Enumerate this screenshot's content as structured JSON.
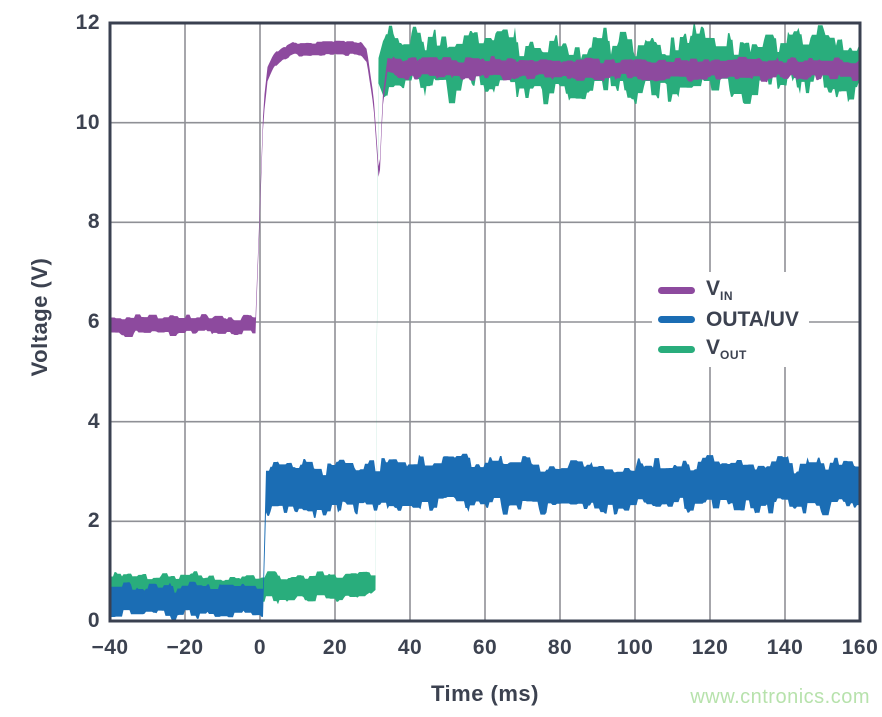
{
  "page": {
    "background": "#ffffff",
    "watermark_text": "www.cntronics.com"
  },
  "chart_data": {
    "type": "line",
    "title": "",
    "xlabel": "Time (ms)",
    "ylabel": "Voltage (V)",
    "xlim": [
      -40,
      160
    ],
    "ylim": [
      0,
      12
    ],
    "grid": true,
    "legend_position": "middle-right",
    "xticks": [
      {
        "value": -40,
        "label": "−40"
      },
      {
        "value": -20,
        "label": "−20"
      },
      {
        "value": 0,
        "label": "0"
      },
      {
        "value": 20,
        "label": "20"
      },
      {
        "value": 40,
        "label": "40"
      },
      {
        "value": 60,
        "label": "60"
      },
      {
        "value": 80,
        "label": "80"
      },
      {
        "value": 100,
        "label": "100"
      },
      {
        "value": 120,
        "label": "120"
      },
      {
        "value": 140,
        "label": "140"
      },
      {
        "value": 160,
        "label": "160"
      }
    ],
    "yticks": [
      {
        "value": 0,
        "label": "0"
      },
      {
        "value": 2,
        "label": "2"
      },
      {
        "value": 4,
        "label": "4"
      },
      {
        "value": 6,
        "label": "6"
      },
      {
        "value": 8,
        "label": "8"
      },
      {
        "value": 10,
        "label": "10"
      },
      {
        "value": 12,
        "label": "12"
      }
    ],
    "colors": {
      "axis_border": "#3a4050",
      "grid": "#8f9096",
      "tick_label": "#3c4250",
      "watermark": "#b7e2ac"
    },
    "point_format": "[t_ms, volts_center, band_halfwidth_v, noise_amplitude_v]",
    "legend_order": [
      "vin",
      "outa-uv",
      "vout"
    ],
    "series": [
      {
        "id": "vout",
        "legend": {
          "main": "V",
          "sub": "OUT"
        },
        "color": "#29ad7c",
        "points": [
          [
            -40,
            0.64,
            0.18,
            0.14
          ],
          [
            28,
            0.7,
            0.18,
            0.14
          ],
          [
            30.9,
            0.78,
            0.12,
            0.06
          ],
          [
            31.5,
            11.05,
            0.15,
            0.1
          ],
          [
            33,
            11.15,
            0.25,
            0.42
          ],
          [
            160,
            11.15,
            0.25,
            0.42
          ]
        ]
      },
      {
        "id": "outa-uv",
        "legend": {
          "main": "OUTA/UV",
          "sub": ""
        },
        "color": "#1b6db4",
        "points": [
          [
            -40,
            0.42,
            0.2,
            0.15
          ],
          [
            0.9,
            0.42,
            0.2,
            0.15
          ],
          [
            1.5,
            2.72,
            0.3,
            0.26
          ],
          [
            160,
            2.72,
            0.3,
            0.26
          ]
        ]
      },
      {
        "id": "vin",
        "legend": {
          "main": "V",
          "sub": "IN"
        },
        "color": "#8d4a9e",
        "points": [
          [
            -40,
            5.93,
            0.11,
            0.1
          ],
          [
            -1.2,
            5.93,
            0.11,
            0.1
          ],
          [
            0,
            8.3,
            0.12,
            0.05
          ],
          [
            0.9,
            10.2,
            0.12,
            0.05
          ],
          [
            2,
            10.95,
            0.12,
            0.05
          ],
          [
            3.5,
            11.2,
            0.11,
            0.05
          ],
          [
            6,
            11.38,
            0.1,
            0.06
          ],
          [
            9,
            11.5,
            0.1,
            0.06
          ],
          [
            27,
            11.5,
            0.1,
            0.06
          ],
          [
            28.5,
            11.35,
            0.1,
            0.05
          ],
          [
            30.3,
            10.4,
            0.09,
            0.04
          ],
          [
            31.8,
            8.8,
            0.09,
            0.04
          ],
          [
            32.7,
            10.4,
            0.1,
            0.05
          ],
          [
            34,
            11.15,
            0.12,
            0.08
          ],
          [
            37,
            11.1,
            0.13,
            0.11
          ],
          [
            160,
            11.08,
            0.13,
            0.11
          ]
        ]
      }
    ]
  }
}
